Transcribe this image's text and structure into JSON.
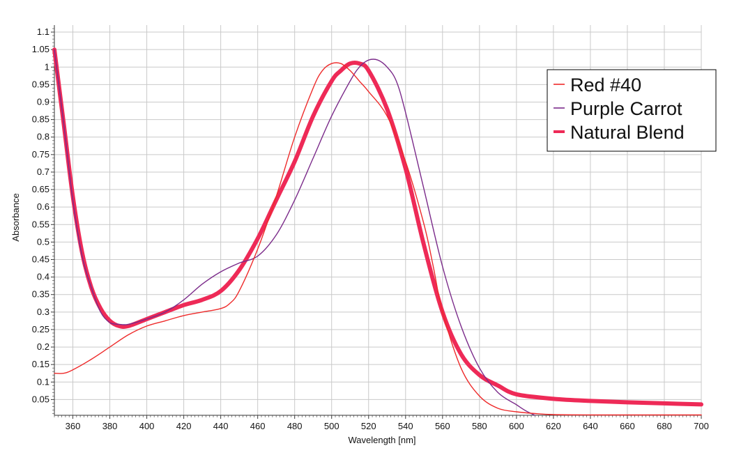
{
  "chart_data": {
    "type": "line",
    "title": "",
    "xlabel": "Wavelength [nm]",
    "ylabel": "Absorbance",
    "xlim": [
      350,
      700
    ],
    "ylim": [
      0.005,
      1.12
    ],
    "grid": true,
    "legend_position": "top-right",
    "x_ticks": [
      360,
      380,
      400,
      420,
      440,
      460,
      480,
      500,
      520,
      540,
      560,
      580,
      600,
      620,
      640,
      660,
      680,
      700
    ],
    "y_ticks": [
      0.05,
      0.1,
      0.15,
      0.2,
      0.25,
      0.3,
      0.35,
      0.4,
      0.45,
      0.5,
      0.55,
      0.6,
      0.65,
      0.7,
      0.75,
      0.8,
      0.85,
      0.9,
      0.95,
      1,
      1.05,
      1.1
    ],
    "series": [
      {
        "name": "Red #40",
        "color": "#ee2a2a",
        "style": "thin",
        "x": [
          350,
          355,
          360,
          370,
          380,
          390,
          400,
          410,
          420,
          430,
          440,
          445,
          450,
          460,
          470,
          480,
          490,
          495,
          500,
          505,
          510,
          515,
          520,
          530,
          540,
          550,
          555,
          560,
          570,
          580,
          590,
          600,
          610,
          620,
          640,
          660,
          680,
          700
        ],
        "y": [
          0.125,
          0.125,
          0.135,
          0.165,
          0.2,
          0.235,
          0.26,
          0.275,
          0.29,
          0.3,
          0.31,
          0.325,
          0.36,
          0.48,
          0.63,
          0.8,
          0.94,
          0.99,
          1.01,
          1.01,
          0.99,
          0.96,
          0.93,
          0.86,
          0.73,
          0.55,
          0.43,
          0.3,
          0.14,
          0.06,
          0.025,
          0.015,
          0.01,
          0.007,
          0.006,
          0.006,
          0.006,
          0.006
        ]
      },
      {
        "name": "Purple Carrot",
        "color": "#7b2b8a",
        "style": "thin",
        "x": [
          350,
          355,
          360,
          365,
          370,
          375,
          380,
          385,
          390,
          400,
          410,
          420,
          430,
          440,
          450,
          460,
          470,
          480,
          490,
          500,
          510,
          515,
          520,
          525,
          530,
          535,
          540,
          550,
          560,
          570,
          580,
          590,
          600,
          605,
          610
        ],
        "y": [
          1.05,
          0.84,
          0.62,
          0.46,
          0.37,
          0.3,
          0.27,
          0.265,
          0.265,
          0.28,
          0.3,
          0.335,
          0.38,
          0.415,
          0.44,
          0.46,
          0.52,
          0.62,
          0.74,
          0.86,
          0.96,
          1.0,
          1.02,
          1.02,
          1.0,
          0.96,
          0.87,
          0.65,
          0.43,
          0.26,
          0.14,
          0.07,
          0.035,
          0.018,
          0.005
        ]
      },
      {
        "name": "Natural Blend",
        "color": "#ee2a57",
        "style": "thick",
        "x": [
          350,
          355,
          360,
          365,
          370,
          375,
          380,
          385,
          390,
          400,
          410,
          420,
          430,
          440,
          450,
          460,
          470,
          480,
          490,
          500,
          505,
          510,
          515,
          520,
          530,
          540,
          550,
          560,
          570,
          580,
          590,
          600,
          620,
          640,
          660,
          680,
          700
        ],
        "y": [
          1.05,
          0.84,
          0.63,
          0.47,
          0.37,
          0.31,
          0.275,
          0.26,
          0.26,
          0.28,
          0.3,
          0.32,
          0.335,
          0.36,
          0.42,
          0.51,
          0.62,
          0.73,
          0.86,
          0.96,
          0.99,
          1.01,
          1.01,
          0.99,
          0.88,
          0.71,
          0.49,
          0.3,
          0.18,
          0.12,
          0.09,
          0.065,
          0.052,
          0.046,
          0.042,
          0.039,
          0.036
        ]
      }
    ]
  }
}
